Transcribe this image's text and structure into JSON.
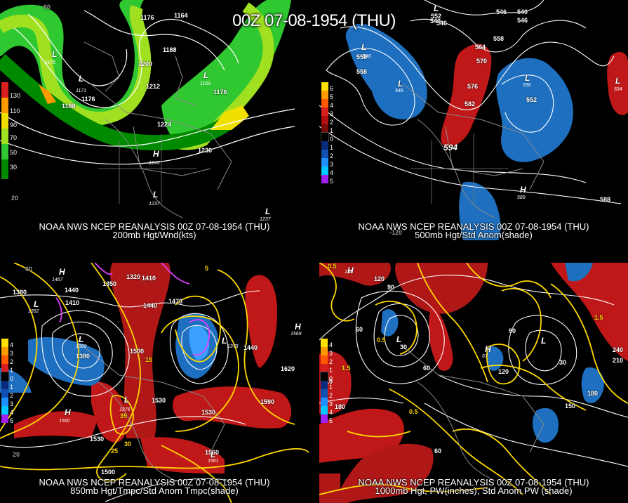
{
  "main_title": "00Z 07-08-1954 (THU)",
  "panels": [
    {
      "caption_line1": "NOAA NWS NCEP REANALYSIS 00Z 07-08-1954 (THU)",
      "caption_line2": "200mb Hgt/Wnd(kts)",
      "legend": [
        "130",
        "110",
        "90",
        "70",
        "50",
        "30"
      ],
      "legend_colors": [
        "#d81e1e",
        "#ff9a00",
        "#f0e000",
        "#a0e020",
        "#30c830",
        "#008a00"
      ],
      "contours": [
        "1176",
        "1164",
        "1188",
        "1200",
        "1212",
        "1176",
        "1176",
        "1188",
        "1224",
        "1236",
        "1176"
      ],
      "lat_labels": [
        "60",
        "20"
      ],
      "highs": [
        {
          "sym": "H",
          "val": "1245"
        }
      ],
      "lows": [
        {
          "sym": "L",
          "val": "1175"
        },
        {
          "sym": "L",
          "val": "1171"
        },
        {
          "sym": "L",
          "val": "1169"
        },
        {
          "sym": "L",
          "val": "1237"
        },
        {
          "sym": "L",
          "val": "1237"
        }
      ]
    },
    {
      "caption_line1": "NOAA NWS NCEP REANALYSIS 00Z 07-08-1954 (THU)",
      "caption_line2": "500mb Hgt/Std Anom(shade)",
      "legend": [
        "6",
        "5",
        "4",
        "3",
        "2",
        "1",
        "0",
        "1",
        "2",
        "3",
        "4",
        "5"
      ],
      "legend_colors": [
        "#ffe000",
        "#ff9a00",
        "#ff5a00",
        "#d81e1e",
        "#b01010",
        "#7a0a0a",
        "#000000",
        "#0a2a7a",
        "#1050b0",
        "#1e90ff",
        "#00c8ff",
        "#a020f0"
      ],
      "contours": [
        "552",
        "546",
        "540",
        "540",
        "546",
        "546",
        "558",
        "564",
        "570",
        "576",
        "582",
        "552",
        "558",
        "558",
        "588",
        "594"
      ],
      "lat_labels": [
        "-120"
      ],
      "highs": [
        {
          "sym": "H",
          "val": "589"
        }
      ],
      "lows": [
        {
          "sym": "L",
          "val": "547"
        },
        {
          "sym": "L",
          "val": "546"
        },
        {
          "sym": "L",
          "val": "546"
        },
        {
          "sym": "L",
          "val": "536"
        },
        {
          "sym": "L",
          "val": "594"
        }
      ]
    },
    {
      "caption_line1": "NOAA NWS NCEP REANALYSIS 00Z 07-08-1954 (THU)",
      "caption_line2": "850mb Hgt/Tmpc/Std Anom Tmpc(shade)",
      "legend": [
        "4",
        "3",
        "2",
        "1",
        "0",
        "1",
        "2",
        "3",
        "4",
        "5"
      ],
      "legend_colors": [
        "#ffe000",
        "#ff9a00",
        "#ff5a00",
        "#d81e1e",
        "#000000",
        "#0a2a7a",
        "#1050b0",
        "#1e90ff",
        "#00c8ff",
        "#a020f0"
      ],
      "contours": [
        "1380",
        "1440",
        "1410",
        "1350",
        "1320",
        "1410",
        "1470",
        "1440",
        "1500",
        "1380",
        "1530",
        "1530",
        "1590",
        "1620",
        "1530",
        "1560",
        "1500",
        "1440",
        "15",
        "35",
        "30",
        "25",
        "5"
      ],
      "lat_labels": [
        "60",
        "20"
      ],
      "highs": [
        {
          "sym": "H",
          "val": "1467"
        },
        {
          "sym": "H",
          "val": "1560"
        },
        {
          "sym": "H",
          "val": "1569"
        }
      ],
      "lows": [
        {
          "sym": "L",
          "val": "1352"
        },
        {
          "sym": "L",
          "val": "1380"
        },
        {
          "sym": "L",
          "val": "1378"
        },
        {
          "sym": "L",
          "val": "1375"
        },
        {
          "sym": "L",
          "val": "1561"
        }
      ]
    },
    {
      "caption_line1": "NOAA NWS NCEP REANALYSIS 00Z 07-08-1954 (THU)",
      "caption_line2": "1000mb Hgt, PW(inches), Std Anom PW (shade)",
      "legend": [
        "4",
        "3",
        "2",
        "1",
        "0",
        "1",
        "2",
        "3",
        "4",
        "5"
      ],
      "legend_colors": [
        "#ffe000",
        "#ff9a00",
        "#ff5a00",
        "#d81e1e",
        "#000000",
        "#0a2a7a",
        "#1050b0",
        "#1e90ff",
        "#00c8ff",
        "#a020f0"
      ],
      "contours": [
        "0.5",
        "120",
        "90",
        "60",
        "30",
        "0.5",
        "1.5",
        "60",
        "90",
        "120",
        "150",
        "180",
        "210",
        "240",
        "60",
        "30",
        "0.5",
        "1.5",
        "180",
        "210"
      ],
      "lat_labels": [],
      "highs": [
        {
          "sym": "H",
          "val": "134"
        },
        {
          "sym": "H",
          "val": "67"
        }
      ],
      "lows": [
        {
          "sym": "L",
          "val": "30"
        },
        {
          "sym": "L",
          "val": "60"
        }
      ]
    }
  ]
}
